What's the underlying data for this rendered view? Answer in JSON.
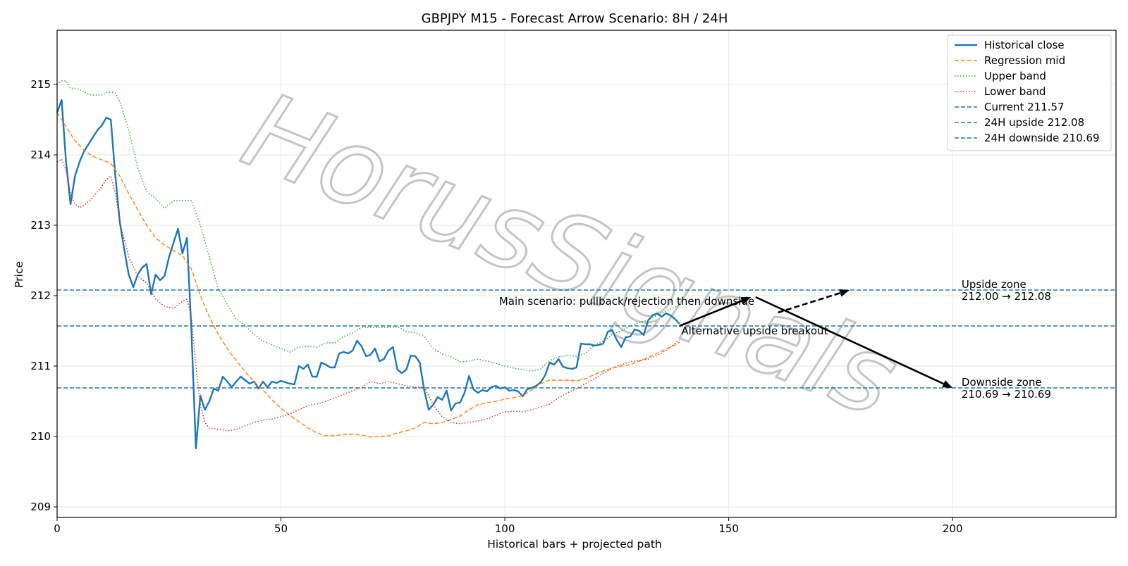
{
  "chart_data": {
    "type": "line",
    "title": "GBPJPY M15 - Forecast Arrow Scenario: 8H / 24H",
    "xlabel": "Historical bars + projected path",
    "ylabel": "Price",
    "xlim": [
      0,
      236.5
    ],
    "ylim": [
      208.85,
      215.77
    ],
    "xticks": [
      0,
      50,
      100,
      150,
      200
    ],
    "yticks": [
      209,
      210,
      211,
      212,
      213,
      214,
      215
    ],
    "grid": true,
    "legend_position": "top-right",
    "colors": {
      "historical": "#1f77b4",
      "regression": "#ff7f0e",
      "upper": "#2ca02c",
      "lower": "#d62728",
      "hline": "#1f77b4",
      "arrow": "#000000"
    },
    "series": [
      {
        "name": "Historical close",
        "style": "solid",
        "x": [
          0,
          1,
          2,
          3,
          4,
          5,
          6,
          7,
          8,
          9,
          10,
          11,
          12,
          13,
          14,
          15,
          16,
          17,
          18,
          19,
          20,
          21,
          22,
          23,
          24,
          25,
          26,
          27,
          28,
          29,
          30,
          31,
          32,
          33,
          34,
          35,
          36,
          37,
          38,
          39,
          40,
          41,
          42,
          43,
          44,
          45,
          46,
          47,
          48,
          49,
          50,
          51,
          52,
          53,
          54,
          55,
          56,
          57,
          58,
          59,
          60,
          61,
          62,
          63,
          64,
          65,
          66,
          67,
          68,
          69,
          70,
          71,
          72,
          73,
          74,
          75,
          76,
          77,
          78,
          79,
          80,
          81,
          82,
          83,
          84,
          85,
          86,
          87,
          88,
          89,
          90,
          91,
          92,
          93,
          94,
          95,
          96,
          97,
          98,
          99,
          100,
          101,
          102,
          103,
          104,
          105,
          106,
          107,
          108,
          109,
          110,
          111,
          112,
          113,
          114,
          115,
          116,
          117,
          118,
          119,
          120,
          121,
          122,
          123,
          124,
          125,
          126,
          127,
          128,
          129,
          130,
          131,
          132,
          133,
          134,
          135,
          136,
          137,
          138,
          139
        ],
        "values": [
          214.6,
          214.78,
          213.9,
          213.3,
          213.7,
          213.9,
          214.05,
          214.15,
          214.25,
          214.35,
          214.42,
          214.53,
          214.5,
          213.7,
          213.05,
          212.65,
          212.3,
          212.12,
          212.3,
          212.4,
          212.45,
          212.02,
          212.3,
          212.22,
          212.28,
          212.55,
          212.75,
          212.95,
          212.6,
          212.82,
          211.5,
          209.83,
          210.58,
          210.38,
          210.5,
          210.68,
          210.65,
          210.85,
          210.78,
          210.7,
          210.78,
          210.85,
          210.8,
          210.75,
          210.78,
          210.68,
          210.78,
          210.7,
          210.78,
          210.76,
          210.79,
          210.77,
          210.75,
          210.74,
          211.0,
          210.96,
          211.02,
          210.85,
          210.85,
          211.05,
          211.02,
          210.98,
          210.98,
          211.18,
          211.2,
          211.18,
          211.22,
          211.36,
          211.28,
          211.14,
          211.16,
          211.25,
          211.07,
          211.1,
          211.22,
          211.27,
          210.95,
          210.9,
          210.95,
          211.15,
          211.14,
          211.05,
          210.65,
          210.38,
          210.45,
          210.56,
          210.52,
          210.65,
          210.37,
          210.47,
          210.48,
          210.62,
          210.86,
          210.67,
          210.62,
          210.66,
          210.64,
          210.7,
          210.72,
          210.68,
          210.7,
          210.65,
          210.66,
          210.64,
          210.57,
          210.67,
          210.69,
          210.72,
          210.77,
          210.87,
          211.05,
          211.02,
          211.1,
          210.99,
          210.97,
          210.96,
          210.98,
          211.32,
          211.31,
          211.31,
          211.29,
          211.3,
          211.32,
          211.49,
          211.51,
          211.37,
          211.27,
          211.41,
          211.42,
          211.52,
          211.5,
          211.44,
          211.65,
          211.72,
          211.75,
          211.7,
          211.75,
          211.72,
          211.67,
          211.6
        ]
      },
      {
        "name": "Regression mid",
        "style": "dashed",
        "x": [
          0,
          2,
          4,
          6,
          8,
          10,
          12,
          14,
          16,
          18,
          20,
          22,
          24,
          26,
          28,
          30,
          32,
          34,
          36,
          38,
          40,
          42,
          44,
          46,
          48,
          50,
          52,
          54,
          56,
          58,
          60,
          62,
          64,
          66,
          68,
          70,
          72,
          74,
          76,
          78,
          80,
          82,
          84,
          86,
          88,
          90,
          92,
          94,
          96,
          98,
          100,
          102,
          104,
          106,
          108,
          110,
          112,
          114,
          116,
          118,
          120,
          122,
          124,
          126,
          128,
          130,
          132,
          134,
          136,
          138,
          139
        ],
        "values": [
          214.6,
          214.4,
          214.2,
          214.07,
          213.98,
          213.93,
          213.88,
          213.7,
          213.45,
          213.22,
          213.0,
          212.82,
          212.72,
          212.64,
          212.57,
          212.38,
          212.0,
          211.7,
          211.45,
          211.25,
          211.08,
          210.92,
          210.78,
          210.66,
          210.52,
          210.4,
          210.3,
          210.21,
          210.12,
          210.05,
          210.01,
          210.01,
          210.03,
          210.03,
          210.02,
          209.99,
          210.0,
          210.01,
          210.05,
          210.08,
          210.12,
          210.2,
          210.18,
          210.2,
          210.24,
          210.29,
          210.38,
          210.45,
          210.48,
          210.5,
          210.53,
          210.55,
          210.58,
          210.66,
          210.75,
          210.8,
          210.8,
          210.8,
          210.79,
          210.82,
          210.88,
          210.93,
          210.97,
          211.0,
          211.02,
          211.07,
          211.12,
          211.18,
          211.24,
          211.3,
          211.34
        ]
      },
      {
        "name": "Upper band",
        "style": "dotted",
        "x": [
          0,
          1,
          2,
          3,
          4,
          5,
          6,
          7,
          8,
          9,
          10,
          11,
          12,
          13,
          14,
          16,
          18,
          20,
          22,
          24,
          26,
          28,
          30,
          32,
          34,
          36,
          38,
          40,
          42,
          44,
          46,
          48,
          50,
          52,
          54,
          56,
          58,
          60,
          62,
          64,
          66,
          68,
          70,
          72,
          74,
          76,
          78,
          80,
          82,
          84,
          86,
          88,
          90,
          92,
          94,
          96,
          98,
          100,
          102,
          104,
          106,
          108,
          110,
          112,
          114,
          116,
          118,
          120,
          122,
          124,
          126,
          128,
          130,
          132,
          134,
          136,
          139
        ],
        "values": [
          215.0,
          215.05,
          215.05,
          214.95,
          214.94,
          214.93,
          214.9,
          214.86,
          214.85,
          214.85,
          214.85,
          214.88,
          214.89,
          214.88,
          214.76,
          214.35,
          213.82,
          213.48,
          213.38,
          213.24,
          213.35,
          213.35,
          213.35,
          213.0,
          212.55,
          212.1,
          211.88,
          211.67,
          211.58,
          211.45,
          211.35,
          211.3,
          211.25,
          211.2,
          211.27,
          211.28,
          211.27,
          211.33,
          211.33,
          211.42,
          211.47,
          211.55,
          211.55,
          211.55,
          211.55,
          211.56,
          211.49,
          211.47,
          211.42,
          211.25,
          211.17,
          211.13,
          211.06,
          211.07,
          211.1,
          211.07,
          211.04,
          211.0,
          210.97,
          210.95,
          210.93,
          210.96,
          211.08,
          211.13,
          211.15,
          211.14,
          211.18,
          211.3,
          211.35,
          211.45,
          211.5,
          211.57,
          211.62,
          211.65,
          211.72,
          211.78,
          211.87
        ]
      },
      {
        "name": "Lower band",
        "style": "dotted",
        "x": [
          0,
          1,
          2,
          3,
          4,
          5,
          6,
          7,
          8,
          9,
          10,
          11,
          12,
          13,
          14,
          16,
          18,
          20,
          22,
          24,
          26,
          28,
          29,
          30,
          31,
          32,
          33,
          34,
          36,
          38,
          40,
          42,
          44,
          46,
          48,
          50,
          52,
          54,
          56,
          58,
          60,
          62,
          64,
          66,
          68,
          70,
          72,
          74,
          76,
          78,
          80,
          82,
          84,
          86,
          88,
          90,
          92,
          94,
          96,
          98,
          100,
          102,
          104,
          106,
          108,
          110,
          112,
          114,
          116,
          118,
          120,
          122,
          124,
          126,
          128,
          130,
          132,
          134,
          136,
          139
        ],
        "values": [
          213.9,
          213.94,
          213.78,
          213.45,
          213.3,
          213.25,
          213.28,
          213.34,
          213.4,
          213.48,
          213.55,
          213.65,
          213.7,
          213.45,
          213.05,
          212.55,
          212.28,
          212.18,
          211.95,
          211.85,
          211.82,
          211.92,
          211.95,
          211.7,
          211.0,
          210.45,
          210.2,
          210.12,
          210.1,
          210.08,
          210.1,
          210.15,
          210.2,
          210.23,
          210.25,
          210.28,
          210.32,
          210.38,
          210.44,
          210.46,
          210.5,
          210.55,
          210.6,
          210.65,
          210.7,
          210.78,
          210.75,
          210.78,
          210.75,
          210.72,
          210.7,
          210.7,
          210.45,
          210.28,
          210.2,
          210.18,
          210.2,
          210.22,
          210.25,
          210.3,
          210.35,
          210.36,
          210.35,
          210.38,
          210.42,
          210.46,
          210.55,
          210.62,
          210.68,
          210.75,
          210.82,
          210.9,
          210.97,
          211.02,
          211.06,
          211.08,
          211.1,
          211.15,
          211.22,
          211.37
        ]
      }
    ],
    "hlines": [
      {
        "name": "Current 211.57",
        "value": 211.57
      },
      {
        "name": "24H upside 212.08",
        "value": 212.08
      },
      {
        "name": "24H downside 210.69",
        "value": 210.69
      }
    ],
    "arrows": [
      {
        "id": "main-up",
        "style": "solid",
        "from": [
          139,
          211.57
        ],
        "to": [
          155,
          211.98
        ]
      },
      {
        "id": "main-down",
        "style": "solid",
        "from": [
          156,
          211.98
        ],
        "to": [
          200,
          210.69
        ]
      },
      {
        "id": "alt-up",
        "style": "dashed",
        "from": [
          161,
          211.76
        ],
        "to": [
          177,
          212.08
        ]
      }
    ],
    "annotations": [
      {
        "id": "main",
        "text": "Main scenario: pullback/rejection then downside",
        "x": 98.7,
        "y": 211.92
      },
      {
        "id": "alt",
        "text": "Alternative upside breakout",
        "x": 139.4,
        "y": 211.5
      }
    ],
    "zones": [
      {
        "id": "upside",
        "title": "Upside zone",
        "range": "212.00 → 212.08",
        "x": 202,
        "y": 212.08
      },
      {
        "id": "downside",
        "title": "Downside zone",
        "range": "210.69 → 210.69",
        "x": 202,
        "y": 210.69
      }
    ],
    "watermark": "HorusSignals"
  }
}
